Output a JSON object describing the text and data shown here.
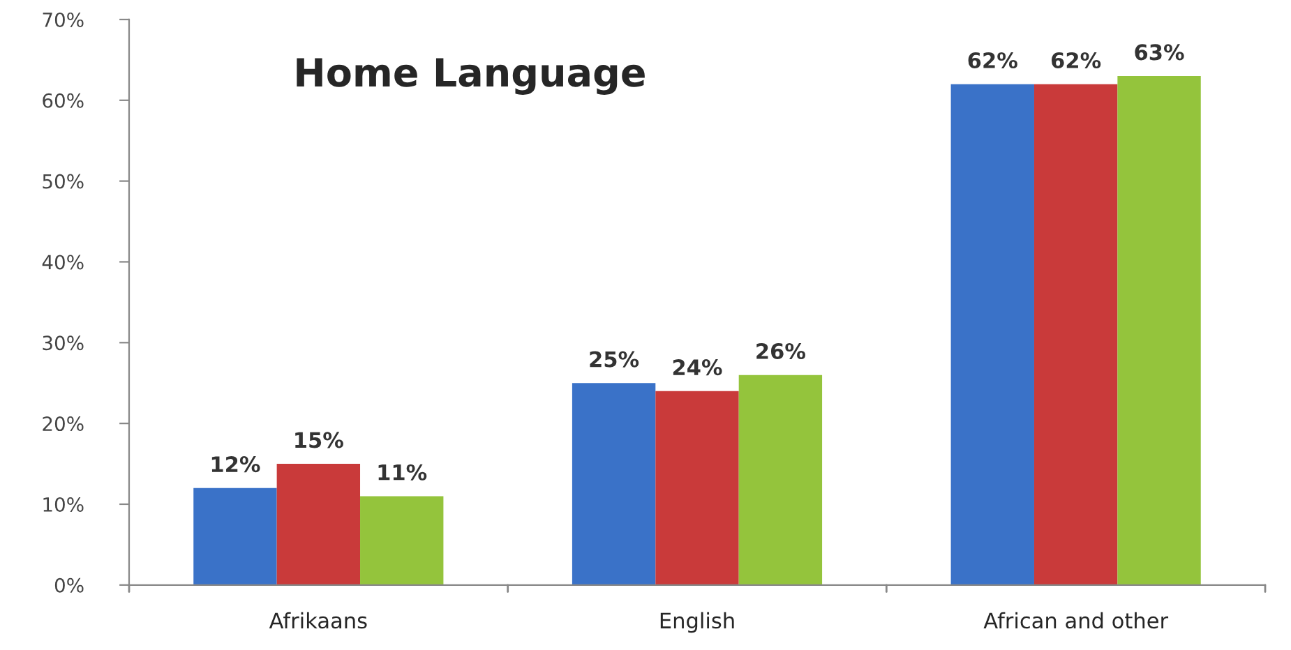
{
  "chart_data": {
    "type": "bar",
    "title": "Home Language",
    "categories": [
      "Afrikaans",
      "English",
      "African and other"
    ],
    "series": [
      {
        "color": "#3a72c8",
        "values": [
          12,
          25,
          62
        ],
        "value_labels": [
          "12%",
          "25%",
          "62%"
        ]
      },
      {
        "color": "#c93a3a",
        "values": [
          15,
          24,
          62
        ],
        "value_labels": [
          "15%",
          "24%",
          "62%"
        ]
      },
      {
        "color": "#94c43c",
        "values": [
          11,
          26,
          63
        ],
        "value_labels": [
          "11%",
          "26%",
          "63%"
        ]
      }
    ],
    "ylim": [
      0,
      70
    ],
    "yticks": [
      {
        "value": 0,
        "label": "0%"
      },
      {
        "value": 10,
        "label": "10%"
      },
      {
        "value": 20,
        "label": "20%"
      },
      {
        "value": 30,
        "label": "30%"
      },
      {
        "value": 40,
        "label": "40%"
      },
      {
        "value": 50,
        "label": "50%"
      },
      {
        "value": 60,
        "label": "60%"
      },
      {
        "value": 70,
        "label": "70%"
      }
    ],
    "grid": false,
    "legend": false
  }
}
